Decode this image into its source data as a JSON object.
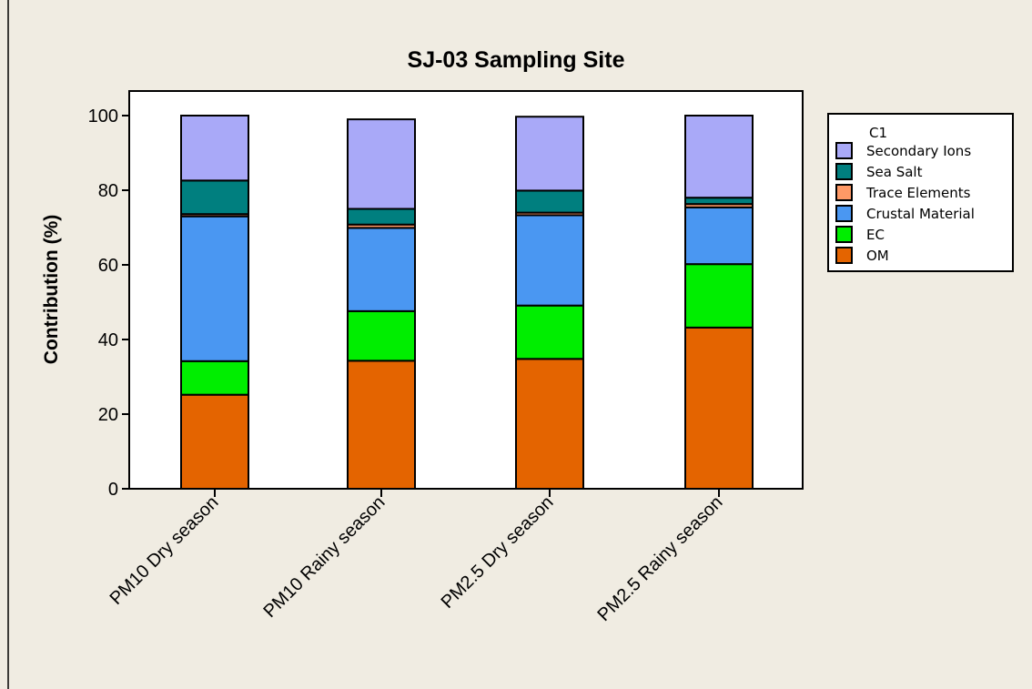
{
  "chart_data": {
    "type": "bar",
    "stacked": true,
    "title": "SJ-03 Sampling Site",
    "xlabel": "",
    "ylabel": "Contribution (%)",
    "ylim": [
      0,
      105
    ],
    "yticks": [
      0,
      20,
      40,
      60,
      80,
      100
    ],
    "categories": [
      "PM10 Dry season",
      "PM10 Rainy season",
      "PM2.5 Dry season",
      "PM2.5 Rainy season"
    ],
    "legend_title": "C1",
    "legend_position": "right",
    "grid": false,
    "series": [
      {
        "name": "OM",
        "color": "#e46400",
        "values": [
          25.2,
          34.3,
          34.8,
          43.2
        ]
      },
      {
        "name": "EC",
        "color": "#00ee00",
        "values": [
          9.0,
          13.3,
          14.3,
          17.0
        ]
      },
      {
        "name": "Crustal Material",
        "color": "#4a97f2",
        "values": [
          38.8,
          22.3,
          24.2,
          15.2
        ]
      },
      {
        "name": "Trace Elements",
        "color": "#ff9966",
        "values": [
          0.6,
          0.9,
          0.7,
          0.9
        ]
      },
      {
        "name": "Sea Salt",
        "color": "#007f7f",
        "values": [
          9.0,
          4.2,
          5.9,
          1.7
        ]
      },
      {
        "name": "Secondary Ions",
        "color": "#a9a9f8",
        "values": [
          17.4,
          24.0,
          19.8,
          22.0
        ]
      }
    ],
    "colors": {
      "page_background": "#f0ece2",
      "plot_background": "#ffffff"
    }
  }
}
